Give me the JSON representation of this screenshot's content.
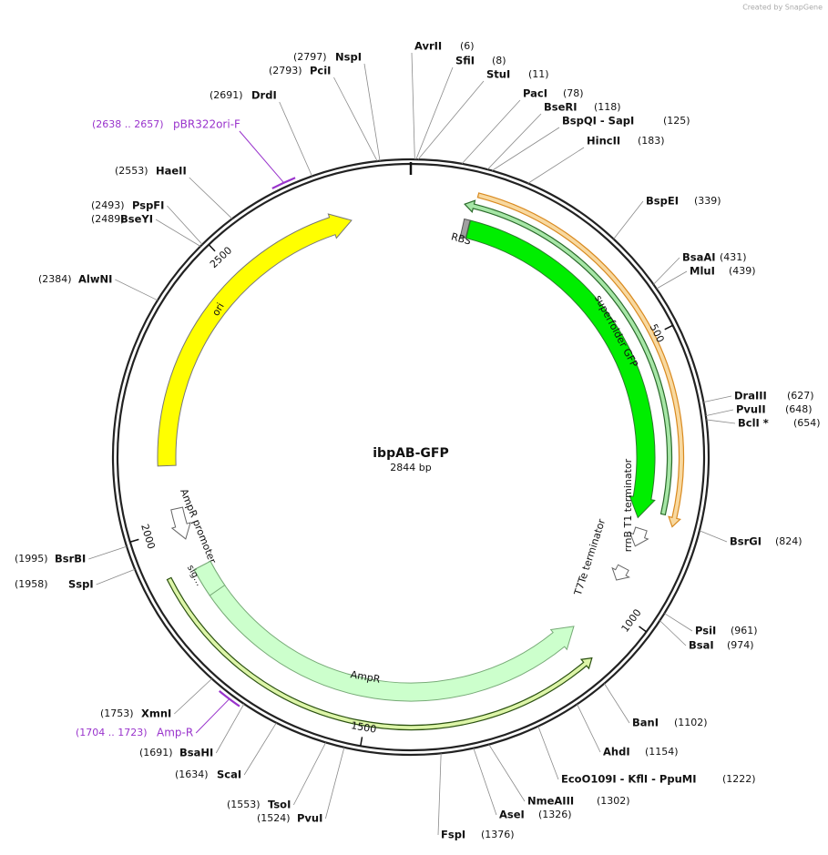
{
  "watermark": "Created by SnapGene",
  "title": "ibpAB-GFP",
  "size_label": "2844 bp",
  "length": 2844,
  "ticks": [
    500,
    1000,
    1500,
    2000,
    2500
  ],
  "enzymes": [
    {
      "name": "AvrII",
      "position": 6,
      "label": "(6)"
    },
    {
      "name": "SfiI",
      "position": 8,
      "label": "(8)"
    },
    {
      "name": "StuI",
      "position": 11,
      "label": "(11)"
    },
    {
      "name": "PacI",
      "position": 78,
      "label": "(78)"
    },
    {
      "name": "BseRI",
      "position": 118,
      "label": "(118)"
    },
    {
      "name": "BspQI - SapI",
      "position": 125,
      "label": "(125)"
    },
    {
      "name": "HincII",
      "position": 183,
      "label": "(183)"
    },
    {
      "name": "BspEI",
      "position": 339,
      "label": "(339)"
    },
    {
      "name": "BsaAI",
      "position": 431,
      "label": "(431)"
    },
    {
      "name": "MluI",
      "position": 439,
      "label": "(439)"
    },
    {
      "name": "DraIII",
      "position": 627,
      "label": "(627)"
    },
    {
      "name": "PvuII",
      "position": 648,
      "label": "(648)"
    },
    {
      "name": "BclI *",
      "position": 654,
      "label": "(654)"
    },
    {
      "name": "BsrGI",
      "position": 824,
      "label": "(824)"
    },
    {
      "name": "PsiI",
      "position": 961,
      "label": "(961)"
    },
    {
      "name": "BsaI",
      "position": 974,
      "label": "(974)"
    },
    {
      "name": "BanI",
      "position": 1102,
      "label": "(1102)"
    },
    {
      "name": "AhdI",
      "position": 1154,
      "label": "(1154)"
    },
    {
      "name": "EcoO109I - KflI - PpuMI",
      "position": 1222,
      "label": "(1222)"
    },
    {
      "name": "NmeAIII",
      "position": 1302,
      "label": "(1302)"
    },
    {
      "name": "AseI",
      "position": 1326,
      "label": "(1326)"
    },
    {
      "name": "FspI",
      "position": 1376,
      "label": "(1376)"
    },
    {
      "name": "PvuI",
      "position": 1524,
      "label": "(1524)"
    },
    {
      "name": "TsoI",
      "position": 1553,
      "label": "(1553)"
    },
    {
      "name": "ScaI",
      "position": 1634,
      "label": "(1634)"
    },
    {
      "name": "BsaHI",
      "position": 1691,
      "label": "(1691)"
    },
    {
      "name": "XmnI",
      "position": 1753,
      "label": "(1753)"
    },
    {
      "name": "SspI",
      "position": 1958,
      "label": "(1958)"
    },
    {
      "name": "BsrBI",
      "position": 1995,
      "label": "(1995)"
    },
    {
      "name": "AlwNI",
      "position": 2384,
      "label": "(2384)"
    },
    {
      "name": "BseYI",
      "position": 2489,
      "label": "(2489)"
    },
    {
      "name": "PspFI",
      "position": 2493,
      "label": "(2493)"
    },
    {
      "name": "HaeII",
      "position": 2553,
      "label": "(2553)"
    },
    {
      "name": "DrdI",
      "position": 2691,
      "label": "(2691)"
    },
    {
      "name": "PciI",
      "position": 2793,
      "label": "(2793)"
    },
    {
      "name": "NspI",
      "position": 2797,
      "label": "(2797)"
    }
  ],
  "primers": [
    {
      "name": "pBR322ori-F",
      "start": 2638,
      "end": 2657,
      "range_label": "(2638 .. 2657)",
      "color": "#9933cc"
    },
    {
      "name": "Amp-R",
      "start": 1704,
      "end": 1723,
      "range_label": "(1704 .. 1723)",
      "color": "#9933cc"
    }
  ],
  "features": [
    {
      "name": "ori",
      "start": 2117,
      "end": 2733,
      "direction": 1,
      "style": "block",
      "color": "#ffff00",
      "outline": "#777777"
    },
    {
      "name": "RBS",
      "start": 100,
      "end": 111,
      "direction": 0,
      "style": "block",
      "color": "#a0a0a0",
      "outline": "#555555"
    },
    {
      "name": "superfolder GFP",
      "start": 112,
      "end": 829,
      "direction": 1,
      "style": "block",
      "color": "#00ee00",
      "outline": "#2a7a2a"
    },
    {
      "name": "rrnB T1 terminator",
      "start": 848,
      "end": 882,
      "direction": 1,
      "style": "outline",
      "color": "#ffffff",
      "outline": "#666666"
    },
    {
      "name": "T7Te terminator",
      "start": 928,
      "end": 955,
      "direction": 1,
      "style": "outline",
      "color": "#ffffff",
      "outline": "#666666"
    },
    {
      "name": "AmpR promoter",
      "start": 1975,
      "end": 2035,
      "direction": -1,
      "style": "outline",
      "color": "#ffffff",
      "outline": "#666666"
    },
    {
      "name": "AmpR",
      "start": 1075,
      "end": 1916,
      "direction": -1,
      "style": "block",
      "color": "#ccffcc",
      "outline": "#77aa77"
    },
    {
      "name": "sig…",
      "start": 1860,
      "end": 1916,
      "direction": 0,
      "style": "block",
      "color": "#ccffcc",
      "outline": "#77aa77"
    },
    {
      "start": 114,
      "end": 829,
      "direction": 1,
      "style": "line",
      "color": "#f8d9a0",
      "outline": "#d98a20"
    },
    {
      "start": 95,
      "end": 812,
      "direction": -1,
      "style": "line",
      "color": "#a6e6a6",
      "outline": "#2a6a2a"
    },
    {
      "start": 1090,
      "end": 1922,
      "direction": -1,
      "style": "line",
      "color": "#ddf5a8",
      "outline": "#2a5010"
    }
  ]
}
